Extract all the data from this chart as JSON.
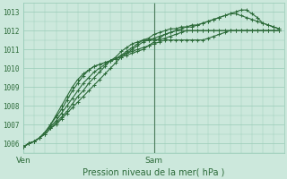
{
  "title": "Pression niveau de la mer( hPa )",
  "bg_color": "#cce8dc",
  "grid_color": "#99ccb8",
  "line_color": "#2d6b3a",
  "text_color": "#2d6b3a",
  "ylim": [
    1005.5,
    1013.5
  ],
  "xlim": [
    0,
    48
  ],
  "xtick_positions": [
    0,
    24,
    48
  ],
  "xtick_labels": [
    "Ven",
    "Sam",
    ""
  ],
  "ytick_positions": [
    1006,
    1007,
    1008,
    1009,
    1010,
    1011,
    1012,
    1013
  ],
  "vline_x": 24,
  "series": [
    [
      1005.8,
      1006.0,
      1006.1,
      1006.3,
      1006.5,
      1006.8,
      1007.0,
      1007.3,
      1007.6,
      1007.9,
      1008.2,
      1008.5,
      1008.8,
      1009.1,
      1009.4,
      1009.7,
      1010.0,
      1010.3,
      1010.6,
      1010.8,
      1011.0,
      1011.2,
      1011.4,
      1011.5,
      1011.6,
      1011.7,
      1011.8,
      1011.9,
      1012.0,
      1012.0,
      1012.0,
      1012.0,
      1012.0,
      1012.0,
      1012.0,
      1012.0,
      1012.0,
      1012.0,
      1012.0,
      1012.0,
      1012.0,
      1012.0,
      1012.0,
      1012.0,
      1012.0,
      1012.0,
      1012.0,
      1012.0
    ],
    [
      1005.8,
      1006.0,
      1006.1,
      1006.3,
      1006.5,
      1006.8,
      1007.1,
      1007.4,
      1007.7,
      1008.1,
      1008.5,
      1008.8,
      1009.2,
      1009.5,
      1009.8,
      1010.1,
      1010.4,
      1010.6,
      1010.9,
      1011.1,
      1011.3,
      1011.4,
      1011.5,
      1011.5,
      1011.5,
      1011.5,
      1011.6,
      1011.7,
      1011.8,
      1011.9,
      1012.0,
      1012.0,
      1012.0,
      1012.0,
      1012.0,
      1012.0,
      1012.0,
      1012.0,
      1012.0,
      1012.0,
      1012.0,
      1012.0,
      1012.0,
      1012.0,
      1012.0,
      1012.0,
      1012.0,
      1012.0
    ],
    [
      1005.8,
      1006.0,
      1006.1,
      1006.3,
      1006.6,
      1006.9,
      1007.2,
      1007.6,
      1008.0,
      1008.4,
      1008.8,
      1009.2,
      1009.5,
      1009.8,
      1010.0,
      1010.2,
      1010.4,
      1010.5,
      1010.7,
      1010.8,
      1010.9,
      1011.0,
      1011.1,
      1011.2,
      1011.3,
      1011.4,
      1011.5,
      1011.5,
      1011.5,
      1011.5,
      1011.5,
      1011.5,
      1011.5,
      1011.5,
      1011.6,
      1011.7,
      1011.8,
      1011.9,
      1012.0,
      1012.0,
      1012.0,
      1012.0,
      1012.0,
      1012.0,
      1012.0,
      1012.0,
      1012.0,
      1012.0
    ],
    [
      1005.8,
      1006.0,
      1006.1,
      1006.3,
      1006.6,
      1007.0,
      1007.4,
      1007.8,
      1008.3,
      1008.8,
      1009.2,
      1009.6,
      1009.9,
      1010.1,
      1010.2,
      1010.3,
      1010.4,
      1010.5,
      1010.6,
      1010.7,
      1010.8,
      1010.9,
      1011.0,
      1011.2,
      1011.4,
      1011.6,
      1011.8,
      1011.9,
      1012.0,
      1012.1,
      1012.2,
      1012.2,
      1012.3,
      1012.4,
      1012.5,
      1012.6,
      1012.7,
      1012.8,
      1012.9,
      1012.9,
      1012.8,
      1012.7,
      1012.6,
      1012.5,
      1012.4,
      1012.3,
      1012.2,
      1012.1
    ],
    [
      1005.8,
      1006.0,
      1006.1,
      1006.3,
      1006.6,
      1007.0,
      1007.5,
      1008.0,
      1008.5,
      1009.0,
      1009.4,
      1009.7,
      1009.9,
      1010.1,
      1010.2,
      1010.3,
      1010.4,
      1010.5,
      1010.7,
      1010.9,
      1011.1,
      1011.3,
      1011.5,
      1011.6,
      1011.8,
      1011.9,
      1012.0,
      1012.1,
      1012.1,
      1012.2,
      1012.2,
      1012.3,
      1012.3,
      1012.4,
      1012.5,
      1012.6,
      1012.7,
      1012.8,
      1012.9,
      1013.0,
      1013.1,
      1013.1,
      1012.9,
      1012.7,
      1012.4,
      1012.3,
      1012.2,
      1012.1
    ]
  ],
  "marker_style": "+",
  "marker_size": 3,
  "linewidth": 0.8
}
